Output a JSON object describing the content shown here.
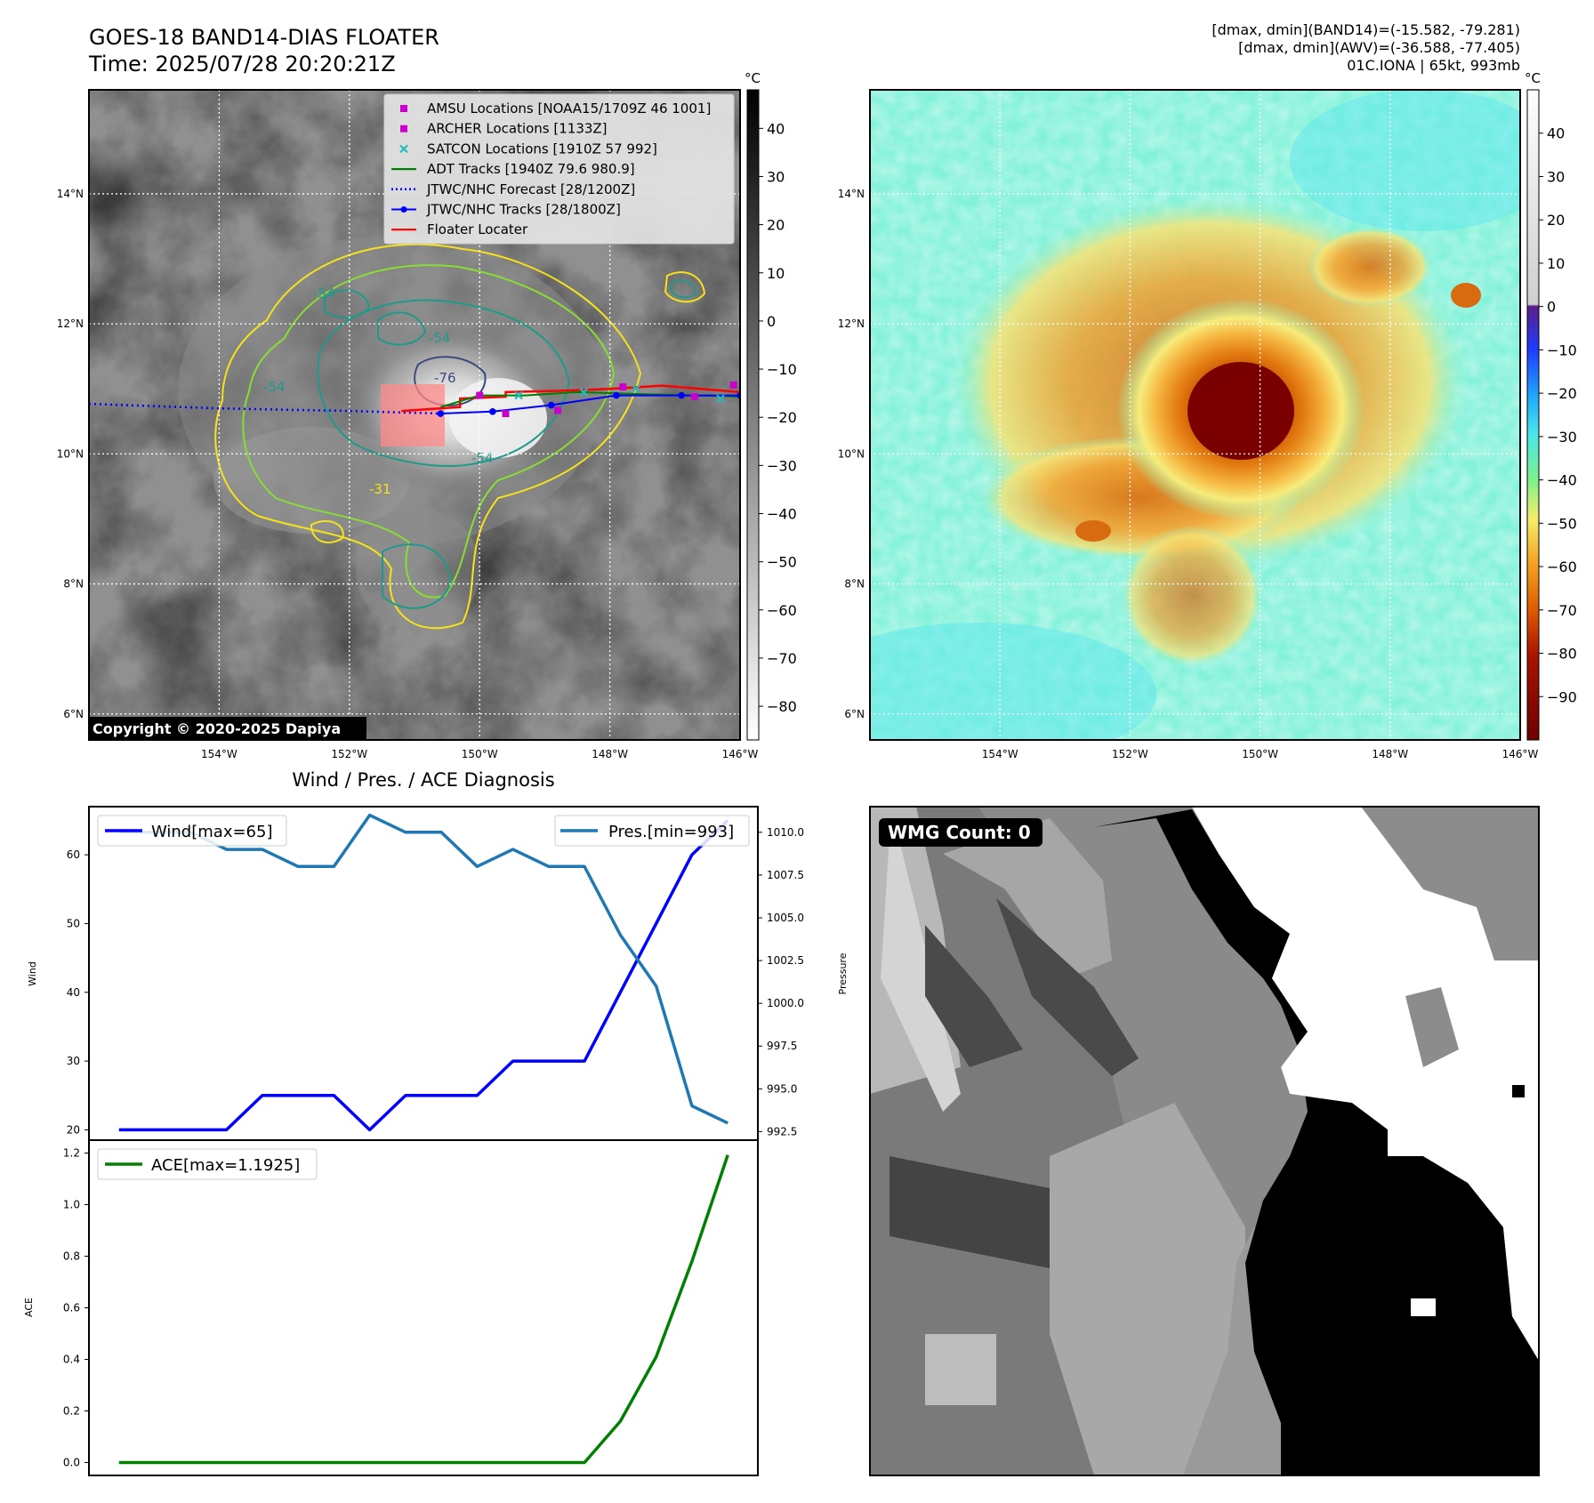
{
  "header": {
    "title_line1": "GOES-18 BAND14-DIAS FLOATER",
    "title_line2": "Time: 2025/07/28 20:20:21Z",
    "info_line1": "[dmax, dmin](BAND14)=(-15.582, -79.281)",
    "info_line2": "[dmax, dmin](AWV)=(-36.588, -77.405)",
    "info_line3": "01C.IONA | 65kt, 993mb"
  },
  "map": {
    "lat_labels": [
      "14°N",
      "12°N",
      "10°N",
      "8°N",
      "6°N"
    ],
    "lat_values": [
      14,
      12,
      10,
      8,
      6
    ],
    "lon_labels": [
      "154°W",
      "152°W",
      "150°W",
      "148°W",
      "146°W"
    ],
    "lon_values": [
      -154,
      -152,
      -150,
      -148,
      -146
    ],
    "lat_range": [
      5.6,
      15.6
    ],
    "lon_range": [
      -156,
      -146
    ],
    "copyright": "Copyright © 2020-2025 Dapiya",
    "contour_labels": [
      "-54",
      "-54",
      "-54",
      "-76",
      "-54",
      "-31"
    ]
  },
  "colorbar_left": {
    "unit": "°C",
    "ticks": [
      "40",
      "30",
      "20",
      "10",
      "0",
      "−10",
      "−20",
      "−30",
      "−40",
      "−50",
      "−60",
      "−70",
      "−80"
    ],
    "tick_values": [
      40,
      30,
      20,
      10,
      0,
      -10,
      -20,
      -30,
      -40,
      -50,
      -60,
      -70,
      -80
    ],
    "range": [
      -87,
      48
    ]
  },
  "colorbar_right": {
    "unit": "°C",
    "ticks": [
      "40",
      "30",
      "20",
      "10",
      "0",
      "−10",
      "−20",
      "−30",
      "−40",
      "−50",
      "−60",
      "−70",
      "−80",
      "−90"
    ],
    "tick_values": [
      40,
      30,
      20,
      10,
      0,
      -10,
      -20,
      -30,
      -40,
      -50,
      -60,
      -70,
      -80,
      -90
    ],
    "range": [
      -100,
      50
    ]
  },
  "legend": {
    "items": [
      {
        "label": "AMSU Locations [NOAA15/1709Z 46 1001]",
        "kind": "square",
        "color": "#cc00cc"
      },
      {
        "label": "ARCHER Locations [1133Z]",
        "kind": "square",
        "color": "#cc00cc"
      },
      {
        "label": "SATCON Locations [1910Z 57 992]",
        "kind": "x",
        "color": "#22bbbb"
      },
      {
        "label": "ADT Tracks [1940Z 79.6 980.9]",
        "kind": "line",
        "color": "#008000"
      },
      {
        "label": "JTWC/NHC Forecast [28/1200Z]",
        "kind": "dotted",
        "color": "#0000ff"
      },
      {
        "label": "JTWC/NHC Tracks [28/1800Z]",
        "kind": "line-dot",
        "color": "#0000ff"
      },
      {
        "label": "Floater Locater",
        "kind": "line",
        "color": "#ff0000"
      }
    ]
  },
  "tracks": {
    "forecast_lon": [
      -156.0,
      -154.0,
      -152.0,
      -150.6
    ],
    "forecast_lat": [
      10.77,
      10.7,
      10.66,
      10.62
    ],
    "best_lon": [
      -150.6,
      -149.8,
      -148.9,
      -147.9,
      -146.9,
      -146.0
    ],
    "best_lat": [
      10.62,
      10.65,
      10.75,
      10.9,
      10.9,
      10.9
    ],
    "amsu_lon": [
      -150.0,
      -149.6,
      -148.8,
      -147.8,
      -146.7,
      -146.1
    ],
    "amsu_lat": [
      10.9,
      10.62,
      10.67,
      11.03,
      10.88,
      11.06
    ],
    "satcon_lon": [
      -149.4,
      -148.4,
      -147.6,
      -146.3
    ],
    "satcon_lat": [
      10.9,
      10.95,
      11.0,
      10.85
    ]
  },
  "wmg_badge": "WMG Count: 0",
  "chart_data": [
    {
      "type": "line",
      "title": "Wind / Pres. / ACE Diagnosis",
      "ylabel": "Wind",
      "y2label": "Pressure",
      "x": [
        0,
        1,
        2,
        3,
        4,
        5,
        6,
        7,
        8,
        9,
        10,
        11,
        12,
        13,
        14,
        15,
        16,
        17
      ],
      "ylim": [
        18.5,
        67
      ],
      "y2lim": [
        992,
        1011.5
      ],
      "yticks": [
        20,
        30,
        40,
        50,
        60
      ],
      "y2ticks": [
        "992.5",
        "995.0",
        "997.5",
        "1000.0",
        "1002.5",
        "1005.0",
        "1007.5",
        "1010.0"
      ],
      "y2tick_values": [
        992.5,
        995.0,
        997.5,
        1000.0,
        1002.5,
        1005.0,
        1007.5,
        1010.0
      ],
      "series": [
        {
          "name": "Wind[max=65]",
          "axis": "left",
          "color": "#0000ff",
          "values": [
            20,
            20,
            20,
            20,
            25,
            25,
            25,
            20,
            25,
            25,
            25,
            30,
            30,
            30,
            40,
            50,
            60,
            65
          ]
        },
        {
          "name": "Pres.[min=993]",
          "axis": "right",
          "color": "#1f77b4",
          "values": [
            1010,
            1010,
            1010,
            1009,
            1009,
            1008,
            1008,
            1011,
            1010,
            1010,
            1008,
            1009,
            1008,
            1008,
            1004,
            1001,
            994,
            993
          ]
        }
      ],
      "legend_position": [
        "upper-left",
        "upper-right"
      ]
    },
    {
      "type": "line",
      "ylabel": "ACE",
      "x": [
        0,
        1,
        2,
        3,
        4,
        5,
        6,
        7,
        8,
        9,
        10,
        11,
        12,
        13,
        14,
        15,
        16,
        17
      ],
      "ylim": [
        -0.05,
        1.25
      ],
      "yticks": [
        "0.0",
        "0.2",
        "0.4",
        "0.6",
        "0.8",
        "1.0",
        "1.2"
      ],
      "ytick_values": [
        0.0,
        0.2,
        0.4,
        0.6,
        0.8,
        1.0,
        1.2
      ],
      "series": [
        {
          "name": "ACE[max=1.1925]",
          "color": "#008000",
          "values": [
            0,
            0,
            0,
            0,
            0,
            0,
            0,
            0,
            0,
            0,
            0,
            0,
            0,
            0,
            0.16,
            0.41,
            0.78,
            1.1925
          ]
        }
      ],
      "legend_position": "upper-left"
    }
  ]
}
